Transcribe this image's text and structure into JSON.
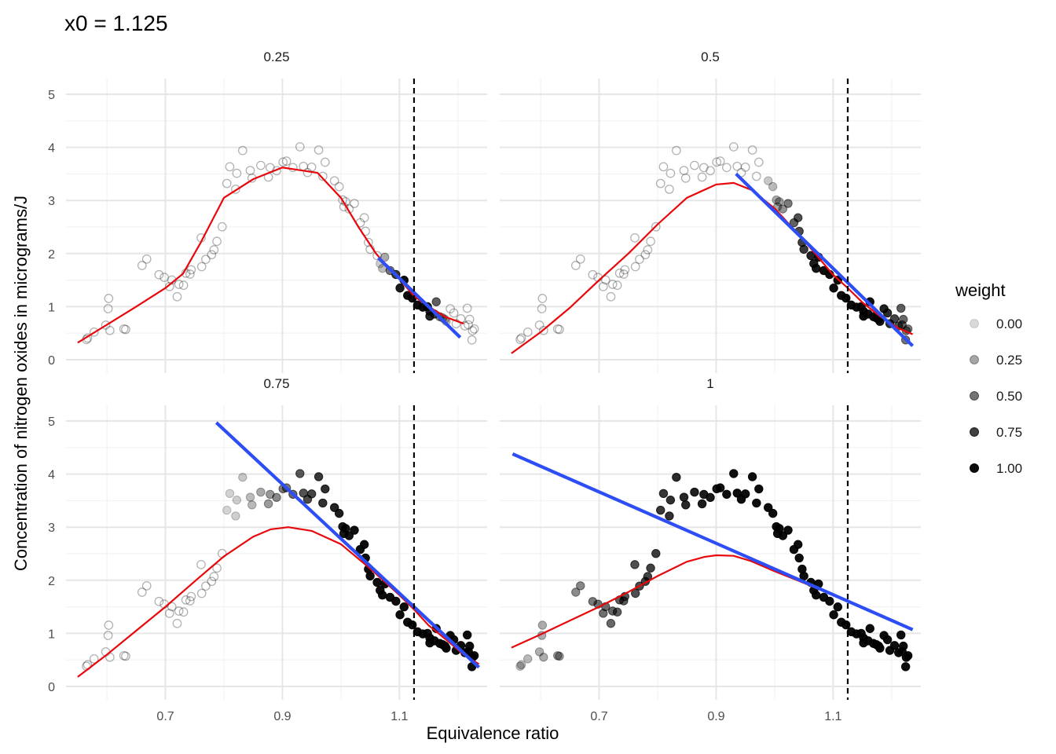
{
  "chart_data": {
    "type": "scatter",
    "title": "x0 =  1.125",
    "xlabel": "Equivalence ratio",
    "ylabel": "Concentration of nitrogen oxides in micrograms/J",
    "xlim": [
      0.53,
      1.25
    ],
    "ylim": [
      0,
      5
    ],
    "x_ticks": [
      "0.7",
      "0.9",
      "1.1"
    ],
    "x_tick_values": [
      0.7,
      0.9,
      1.1
    ],
    "y_ticks": [
      "0",
      "1",
      "2",
      "3",
      "4",
      "5"
    ],
    "y_tick_values": [
      0,
      1,
      2,
      3,
      4,
      5
    ],
    "x0": 1.125,
    "grid": true,
    "legend": {
      "title": "weight",
      "position": "right",
      "levels": [
        "0.00",
        "0.25",
        "0.50",
        "0.75",
        "1.00"
      ],
      "alphas": [
        0.15,
        0.35,
        0.55,
        0.75,
        0.95
      ]
    },
    "colors": {
      "points": "#000000",
      "smooth_line": "#e8080c",
      "local_fit_line": "#2e4ef5",
      "reference_line": "#000000"
    },
    "points": [
      [
        0.907,
        3.741
      ],
      [
        0.761,
        2.295
      ],
      [
        1.108,
        1.498
      ],
      [
        1.04,
        2.674
      ],
      [
        1.178,
        0.76
      ],
      [
        1.224,
        0.373
      ],
      [
        1.023,
        2.943
      ],
      [
        1.205,
        0.772
      ],
      [
        0.943,
        3.525
      ],
      [
        0.598,
        0.652
      ],
      [
        0.805,
        3.32
      ],
      [
        0.936,
        3.642
      ],
      [
        0.603,
        1.154
      ],
      [
        0.711,
        1.502
      ],
      [
        0.81,
        3.634
      ],
      [
        0.82,
        3.211
      ],
      [
        0.845,
        3.564
      ],
      [
        0.901,
        3.723
      ],
      [
        0.95,
        3.627
      ],
      [
        1.075,
        1.931
      ],
      [
        0.822,
        3.511
      ],
      [
        0.989,
        3.37
      ],
      [
        0.879,
        3.618
      ],
      [
        1.008,
        2.976
      ],
      [
        0.969,
        3.455
      ],
      [
        1.163,
        1.091
      ],
      [
        1.152,
        0.82
      ],
      [
        1.094,
        1.605
      ],
      [
        0.848,
        3.42
      ],
      [
        1.18,
        0.722
      ],
      [
        1.212,
        0.636
      ],
      [
        1.152,
        0.913
      ],
      [
        1.174,
        0.789
      ],
      [
        1.197,
        0.679
      ],
      [
        1.218,
        0.657
      ],
      [
        1.225,
        0.547
      ],
      [
        0.578,
        0.52
      ],
      [
        0.567,
        0.409
      ],
      [
        0.629,
        0.58
      ],
      [
        0.602,
        0.961
      ],
      [
        0.668,
        1.896
      ],
      [
        0.66,
        1.775
      ],
      [
        0.698,
        1.551
      ],
      [
        0.707,
        1.378
      ],
      [
        0.689,
        1.601
      ],
      [
        0.565,
        0.381
      ],
      [
        0.632,
        0.57
      ],
      [
        0.731,
        1.402
      ],
      [
        0.723,
        1.42
      ],
      [
        0.605,
        0.551
      ],
      [
        0.744,
        1.694
      ],
      [
        0.735,
        1.63
      ],
      [
        0.72,
        1.187
      ],
      [
        0.762,
        1.753
      ],
      [
        0.742,
        1.612
      ],
      [
        0.783,
        2.071
      ],
      [
        0.788,
        2.23
      ],
      [
        0.769,
        1.891
      ],
      [
        0.779,
        1.979
      ],
      [
        0.797,
        2.504
      ],
      [
        0.832,
        3.94
      ],
      [
        0.863,
        3.66
      ],
      [
        0.876,
        3.44
      ],
      [
        0.89,
        3.56
      ],
      [
        0.918,
        3.62
      ],
      [
        0.93,
        4.01
      ],
      [
        0.962,
        3.95
      ],
      [
        0.973,
        3.72
      ],
      [
        0.997,
        3.26
      ],
      [
        1.003,
        3.01
      ],
      [
        1.005,
        2.88
      ],
      [
        1.014,
        2.84
      ],
      [
        1.033,
        2.58
      ],
      [
        1.042,
        2.42
      ],
      [
        1.047,
        2.21
      ],
      [
        1.05,
        2.08
      ],
      [
        1.062,
        1.96
      ],
      [
        1.067,
        1.81
      ],
      [
        1.071,
        1.72
      ],
      [
        1.084,
        1.68
      ],
      [
        1.101,
        1.35
      ],
      [
        1.114,
        1.21
      ],
      [
        1.122,
        1.16
      ],
      [
        1.131,
        1.03
      ],
      [
        1.14,
        0.99
      ],
      [
        1.148,
        1.0
      ],
      [
        1.16,
        0.86
      ],
      [
        1.169,
        0.81
      ],
      [
        1.187,
        0.96
      ],
      [
        1.193,
        0.88
      ],
      [
        1.216,
        0.97
      ],
      [
        1.22,
        0.76
      ],
      [
        1.228,
        0.58
      ]
    ],
    "panels": [
      {
        "label": "0.25",
        "span": 0.25,
        "smooth_line": [
          [
            0.55,
            0.32
          ],
          [
            0.6,
            0.66
          ],
          [
            0.65,
            1.0
          ],
          [
            0.7,
            1.35
          ],
          [
            0.73,
            1.62
          ],
          [
            0.76,
            2.2
          ],
          [
            0.8,
            3.05
          ],
          [
            0.85,
            3.4
          ],
          [
            0.9,
            3.62
          ],
          [
            0.93,
            3.57
          ],
          [
            0.96,
            3.52
          ],
          [
            1.0,
            3.05
          ],
          [
            1.03,
            2.5
          ],
          [
            1.06,
            2.0
          ],
          [
            1.08,
            1.75
          ],
          [
            1.1,
            1.52
          ],
          [
            1.125,
            1.2
          ],
          [
            1.15,
            1.0
          ],
          [
            1.18,
            0.8
          ],
          [
            1.21,
            0.68
          ]
        ],
        "local_fit_line": [
          [
            1.064,
            1.92
          ],
          [
            1.204,
            0.42
          ]
        ]
      },
      {
        "label": "0.5",
        "span": 0.5,
        "smooth_line": [
          [
            0.55,
            0.12
          ],
          [
            0.6,
            0.52
          ],
          [
            0.65,
            0.98
          ],
          [
            0.7,
            1.5
          ],
          [
            0.75,
            2.0
          ],
          [
            0.8,
            2.55
          ],
          [
            0.85,
            3.05
          ],
          [
            0.9,
            3.3
          ],
          [
            0.93,
            3.33
          ],
          [
            0.96,
            3.2
          ],
          [
            1.0,
            2.85
          ],
          [
            1.05,
            2.25
          ],
          [
            1.1,
            1.6
          ],
          [
            1.125,
            1.35
          ],
          [
            1.15,
            1.08
          ],
          [
            1.18,
            0.82
          ],
          [
            1.21,
            0.6
          ],
          [
            1.236,
            0.48
          ]
        ],
        "local_fit_line": [
          [
            0.934,
            3.5
          ],
          [
            1.236,
            0.26
          ]
        ]
      },
      {
        "label": "0.75",
        "span": 0.75,
        "smooth_line": [
          [
            0.55,
            0.18
          ],
          [
            0.6,
            0.6
          ],
          [
            0.65,
            1.05
          ],
          [
            0.7,
            1.5
          ],
          [
            0.75,
            1.98
          ],
          [
            0.8,
            2.45
          ],
          [
            0.85,
            2.82
          ],
          [
            0.88,
            2.96
          ],
          [
            0.91,
            3.0
          ],
          [
            0.95,
            2.93
          ],
          [
            1.0,
            2.68
          ],
          [
            1.05,
            2.22
          ],
          [
            1.1,
            1.72
          ],
          [
            1.125,
            1.45
          ],
          [
            1.15,
            1.15
          ],
          [
            1.18,
            0.88
          ],
          [
            1.21,
            0.6
          ],
          [
            1.236,
            0.42
          ]
        ],
        "local_fit_line": [
          [
            0.787,
            4.97
          ],
          [
            1.236,
            0.36
          ]
        ]
      },
      {
        "label": "1",
        "span": 1.0,
        "smooth_line": [
          [
            0.55,
            0.73
          ],
          [
            0.6,
            0.98
          ],
          [
            0.65,
            1.24
          ],
          [
            0.7,
            1.5
          ],
          [
            0.75,
            1.78
          ],
          [
            0.8,
            2.08
          ],
          [
            0.85,
            2.35
          ],
          [
            0.88,
            2.44
          ],
          [
            0.9,
            2.47
          ],
          [
            0.93,
            2.46
          ],
          [
            0.96,
            2.36
          ],
          [
            1.0,
            2.17
          ],
          [
            1.05,
            1.95
          ],
          [
            1.1,
            1.72
          ],
          [
            1.125,
            1.6
          ]
        ],
        "local_fit_line": [
          [
            0.552,
            4.38
          ],
          [
            1.236,
            1.07
          ]
        ]
      }
    ]
  }
}
